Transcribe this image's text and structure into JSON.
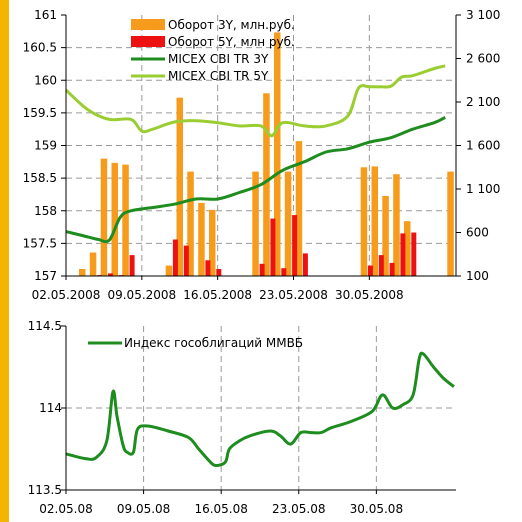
{
  "chart_data": [
    {
      "type": "bar",
      "x_labels": [
        "02.05.2008",
        "09.05.2008",
        "16.05.2008",
        "23.05.2008",
        "30.05.2008"
      ],
      "y_left": {
        "min": 157,
        "max": 161,
        "ticks": [
          "157",
          "157.5",
          "158",
          "158.5",
          "159",
          "159.5",
          "160",
          "160.5",
          "161"
        ]
      },
      "y_right": {
        "min": 100,
        "max": 3100,
        "ticks": [
          "100",
          "600",
          "1 100",
          "1 600",
          "2 100",
          "2 600",
          "3 100"
        ]
      },
      "legend": [
        {
          "name": "Оборот 3Y, млн.руб.",
          "color": "#f79b1c",
          "kind": "bar"
        },
        {
          "name": "Оборот 5Y, млн руб.",
          "color": "#ee1111",
          "kind": "bar"
        },
        {
          "name": "MICEX CBI TR 3Y",
          "color": "#1e8c1e",
          "kind": "line"
        },
        {
          "name": "MICEX CBI TR 5Y",
          "color": "#9acd32",
          "kind": "line"
        }
      ],
      "series": [
        {
          "name": "Оборот 3Y, млн.руб.",
          "axis": "right",
          "kind": "bar",
          "points": [
            [
              0.75,
              180
            ],
            [
              1.25,
              370
            ],
            [
              1.75,
              1450
            ],
            [
              2.25,
              1400
            ],
            [
              2.75,
              1380
            ],
            [
              4.75,
              220
            ],
            [
              5.25,
              2150
            ],
            [
              5.75,
              1300
            ],
            [
              6.25,
              940
            ],
            [
              6.75,
              860
            ],
            [
              8.75,
              1300
            ],
            [
              9.25,
              2200
            ],
            [
              9.75,
              2900
            ],
            [
              10.25,
              1300
            ],
            [
              10.75,
              1650
            ],
            [
              13.75,
              1350
            ],
            [
              14.25,
              1360
            ],
            [
              14.75,
              1020
            ],
            [
              15.25,
              1270
            ],
            [
              15.75,
              730
            ],
            [
              17.75,
              1300
            ]
          ]
        },
        {
          "name": "Оборот 5Y, млн руб.",
          "axis": "right",
          "kind": "bar",
          "points": [
            [
              1.55,
              110
            ],
            [
              2.05,
              130
            ],
            [
              2.55,
              110
            ],
            [
              3.05,
              340
            ],
            [
              5.05,
              520
            ],
            [
              5.55,
              450
            ],
            [
              6.55,
              280
            ],
            [
              7.05,
              180
            ],
            [
              9.05,
              240
            ],
            [
              9.55,
              760
            ],
            [
              10.05,
              190
            ],
            [
              10.55,
              800
            ],
            [
              11.05,
              360
            ],
            [
              14.05,
              220
            ],
            [
              14.55,
              340
            ],
            [
              15.05,
              250
            ],
            [
              15.55,
              590
            ],
            [
              16.05,
              600
            ]
          ]
        },
        {
          "name": "MICEX CBI TR 3Y",
          "axis": "left",
          "kind": "line",
          "points": [
            [
              0,
              157.68
            ],
            [
              1,
              157.6
            ],
            [
              1.5,
              157.56
            ],
            [
              2,
              157.55
            ],
            [
              2.5,
              157.9
            ],
            [
              3,
              158.0
            ],
            [
              4,
              158.05
            ],
            [
              5,
              158.1
            ],
            [
              6,
              158.18
            ],
            [
              7,
              158.18
            ],
            [
              8,
              158.28
            ],
            [
              9,
              158.4
            ],
            [
              10,
              158.62
            ],
            [
              11,
              158.75
            ],
            [
              12,
              158.9
            ],
            [
              13,
              158.95
            ],
            [
              14,
              159.05
            ],
            [
              15,
              159.12
            ],
            [
              16,
              159.25
            ],
            [
              17,
              159.35
            ],
            [
              17.5,
              159.43
            ]
          ]
        },
        {
          "name": "MICEX CBI TR 5Y",
          "axis": "left",
          "kind": "line",
          "points": [
            [
              0,
              159.85
            ],
            [
              1,
              159.55
            ],
            [
              2,
              159.4
            ],
            [
              3,
              159.4
            ],
            [
              3.5,
              159.22
            ],
            [
              4,
              159.25
            ],
            [
              5,
              159.36
            ],
            [
              6,
              159.38
            ],
            [
              7,
              159.35
            ],
            [
              8,
              159.3
            ],
            [
              9,
              159.3
            ],
            [
              9.5,
              159.15
            ],
            [
              10,
              159.35
            ],
            [
              11,
              159.3
            ],
            [
              12,
              159.3
            ],
            [
              13,
              159.45
            ],
            [
              13.5,
              159.88
            ],
            [
              14,
              159.9
            ],
            [
              14.5,
              159.9
            ],
            [
              15,
              159.91
            ],
            [
              15.5,
              160.05
            ],
            [
              16,
              160.07
            ],
            [
              17,
              160.18
            ],
            [
              17.5,
              160.22
            ]
          ]
        }
      ]
    },
    {
      "type": "line",
      "x_labels": [
        "02.05.08",
        "09.05.08",
        "16.05.08",
        "23.05.08",
        "30.05.08"
      ],
      "y": {
        "min": 113.5,
        "max": 114.5,
        "ticks": [
          "113.5",
          "114",
          "114.5"
        ]
      },
      "series": [
        {
          "name": "Индекс гособлигаций ММВБ",
          "color": "#1e8c1e",
          "points": [
            [
              0,
              113.72
            ],
            [
              1,
              113.69
            ],
            [
              1.5,
              113.7
            ],
            [
              2,
              113.8
            ],
            [
              2.3,
              114.1
            ],
            [
              2.5,
              113.95
            ],
            [
              2.8,
              113.77
            ],
            [
              3,
              113.73
            ],
            [
              3.3,
              113.73
            ],
            [
              3.5,
              113.87
            ],
            [
              4,
              113.89
            ],
            [
              5,
              113.86
            ],
            [
              6,
              113.82
            ],
            [
              6.5,
              113.75
            ],
            [
              7,
              113.68
            ],
            [
              7.3,
              113.65
            ],
            [
              7.8,
              113.67
            ],
            [
              8,
              113.75
            ],
            [
              8.5,
              113.8
            ],
            [
              9,
              113.83
            ],
            [
              10,
              113.86
            ],
            [
              10.5,
              113.83
            ],
            [
              11,
              113.78
            ],
            [
              11.5,
              113.85
            ],
            [
              12,
              113.85
            ],
            [
              12.5,
              113.85
            ],
            [
              13,
              113.88
            ],
            [
              14,
              113.92
            ],
            [
              15,
              113.98
            ],
            [
              15.5,
              114.08
            ],
            [
              16,
              114.0
            ],
            [
              16.5,
              114.02
            ],
            [
              17,
              114.08
            ],
            [
              17.3,
              114.3
            ],
            [
              17.5,
              114.33
            ],
            [
              18,
              114.25
            ],
            [
              18.5,
              114.18
            ],
            [
              19,
              114.13
            ]
          ]
        }
      ]
    }
  ]
}
